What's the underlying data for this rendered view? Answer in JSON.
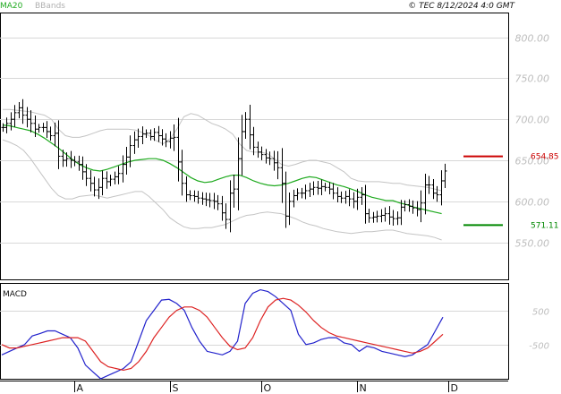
{
  "header": {
    "legend_ma": "MA20",
    "legend_bb": "BBands",
    "copyright": "© TEC 8/12/2024 4:0 GMT"
  },
  "macd_panel": {
    "title": "MACD"
  },
  "levels": [
    {
      "value": 654.85,
      "label": "654.85",
      "color": "#cc0000"
    },
    {
      "value": 571.11,
      "label": "571.11",
      "color": "#008800"
    }
  ],
  "colors": {
    "bars": "#000000",
    "ma20": "#1faa1f",
    "bbands": "#c4c4c4",
    "macd": "#2222cc",
    "signal": "#dd2222",
    "grid": "#d8d8d8",
    "frame": "#000000"
  },
  "chart_data": [
    {
      "type": "ohlc",
      "title": "",
      "ylim": [
        505,
        830
      ],
      "y_ticks": [
        {
          "value": 800,
          "label": "800.00"
        },
        {
          "value": 750,
          "label": "750.00"
        },
        {
          "value": 700,
          "label": "700.00"
        },
        {
          "value": 650,
          "label": "650.00"
        },
        {
          "value": 600,
          "label": "600.00"
        },
        {
          "value": 550,
          "label": "550.00"
        }
      ],
      "x_ticks": [
        {
          "index": 18,
          "label": "A"
        },
        {
          "index": 42,
          "label": "S"
        },
        {
          "index": 65,
          "label": "O"
        },
        {
          "index": 89,
          "label": "N"
        },
        {
          "index": 112,
          "label": "D"
        }
      ],
      "closes": [
        690,
        695,
        700,
        708,
        714,
        705,
        700,
        695,
        688,
        690,
        690,
        685,
        680,
        683,
        655,
        650,
        652,
        650,
        648,
        645,
        636,
        628,
        622,
        614,
        617,
        628,
        624,
        627,
        630,
        634,
        645,
        654,
        668,
        675,
        679,
        682,
        683,
        679,
        684,
        680,
        676,
        673,
        677,
        678,
        648,
        622,
        608,
        607,
        606,
        604,
        603,
        602,
        601,
        600,
        597,
        586,
        578,
        610,
        615,
        652,
        685,
        700,
        681,
        666,
        660,
        657,
        653,
        652,
        647,
        641,
        622,
        582,
        600,
        607,
        610,
        610,
        613,
        615,
        617,
        616,
        618,
        617,
        615,
        610,
        606,
        604,
        606,
        603,
        600,
        605,
        608,
        585,
        580,
        581,
        582,
        583,
        585,
        581,
        579,
        580,
        593,
        596,
        594,
        592,
        590,
        598,
        620,
        620,
        610,
        608,
        625,
        637
      ],
      "ma20": [
        693,
        692,
        690,
        688,
        686,
        682,
        677,
        671,
        665,
        658,
        651,
        645,
        641,
        638,
        637,
        639,
        642,
        645,
        648,
        650,
        651,
        652,
        652,
        650,
        646,
        641,
        635,
        629,
        625,
        623,
        624,
        627,
        630,
        632,
        632,
        629,
        625,
        622,
        620,
        619,
        620,
        622,
        625,
        628,
        630,
        629,
        626,
        623,
        620,
        618,
        615,
        612,
        608,
        605,
        603,
        601,
        601,
        598,
        596,
        593,
        591,
        589,
        587,
        585
      ],
      "ma20_start": 0,
      "bb_upper": [
        712,
        712,
        711,
        710,
        709,
        707,
        705,
        700,
        688,
        680,
        678,
        678,
        680,
        683,
        686,
        688,
        688,
        688,
        688,
        687,
        684,
        680,
        674,
        670,
        676,
        688,
        703,
        707,
        705,
        700,
        695,
        692,
        688,
        682,
        670,
        662,
        660,
        660,
        658,
        652,
        645,
        643,
        645,
        648,
        650,
        650,
        648,
        646,
        641,
        636,
        628,
        625,
        624,
        624,
        624,
        623,
        622,
        622,
        620,
        619,
        618,
        617,
        615,
        613
      ],
      "bb_lower": [
        675,
        672,
        668,
        662,
        652,
        640,
        628,
        616,
        607,
        603,
        603,
        606,
        607,
        608,
        606,
        604,
        606,
        608,
        610,
        612,
        612,
        606,
        598,
        590,
        580,
        574,
        569,
        567,
        567,
        568,
        568,
        570,
        572,
        576,
        580,
        583,
        584,
        586,
        587,
        586,
        585,
        582,
        579,
        575,
        572,
        570,
        567,
        565,
        563,
        562,
        561,
        562,
        563,
        563,
        564,
        565,
        565,
        563,
        561,
        560,
        559,
        558,
        556,
        553
      ],
      "band_start": 0,
      "band_step": 1.75
    },
    {
      "type": "line",
      "title": "MACD",
      "ylim": [
        -1500,
        1300
      ],
      "y_ticks": [
        {
          "value": 500,
          "label": "500"
        },
        {
          "value": -500,
          "label": "-500"
        }
      ],
      "series": [
        {
          "values": [
            -800,
            -700,
            -600,
            -500,
            -250,
            -180,
            -100,
            -100,
            -200,
            -300,
            -600,
            -1100,
            -1300,
            -1500,
            -1400,
            -1300,
            -1200,
            -1000,
            -400,
            200,
            500,
            800,
            820,
            700,
            500,
            0,
            -400,
            -700,
            -750,
            -800,
            -700,
            -400,
            700,
            1000,
            1100,
            1050,
            900,
            700,
            500,
            -200,
            -500,
            -450,
            -350,
            -300,
            -300,
            -450,
            -500,
            -700,
            -550,
            -600,
            -700,
            -750,
            -800,
            -850,
            -800,
            -650,
            -500,
            -100,
            300
          ]
        },
        {
          "values": [
            -500,
            -600,
            -600,
            -550,
            -500,
            -450,
            -400,
            -350,
            -300,
            -300,
            -300,
            -400,
            -700,
            -1000,
            -1150,
            -1200,
            -1250,
            -1200,
            -1000,
            -700,
            -300,
            0,
            300,
            500,
            600,
            600,
            500,
            300,
            0,
            -300,
            -550,
            -650,
            -600,
            -300,
            200,
            600,
            800,
            850,
            800,
            650,
            450,
            200,
            0,
            -150,
            -250,
            -300,
            -350,
            -400,
            -450,
            -500,
            -550,
            -600,
            -650,
            -700,
            -750,
            -700,
            -600,
            -400,
            -200
          ]
        }
      ],
      "series_step": 8.5
    }
  ]
}
